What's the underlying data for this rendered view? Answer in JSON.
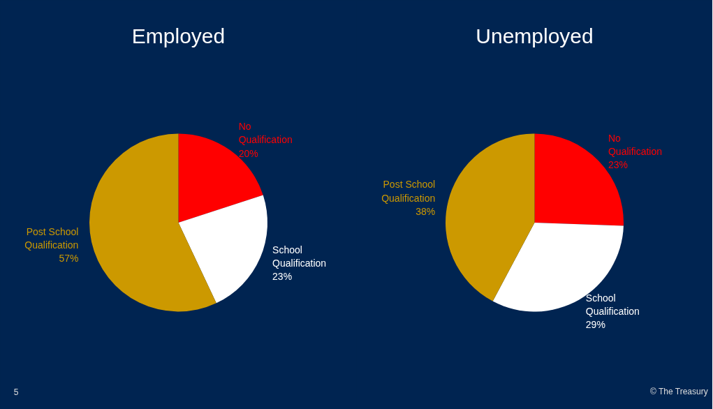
{
  "chart_data": [
    {
      "type": "pie",
      "title": "Employed",
      "categories": [
        "No Qualification",
        "School Qualification",
        "Post School Qualification"
      ],
      "values": [
        20,
        23,
        57
      ],
      "colors": [
        "#ff0000",
        "#ffffff",
        "#cc9900"
      ],
      "value_labels": [
        "20%",
        "23%",
        "57%"
      ],
      "annotations": [
        "5"
      ]
    },
    {
      "type": "pie",
      "title": "Unemployed",
      "categories": [
        "No Qualification",
        "School Qualification",
        "Post School Qualification"
      ],
      "values": [
        23,
        29,
        38
      ],
      "colors": [
        "#ff0000",
        "#ffffff",
        "#cc9900"
      ],
      "value_labels": [
        "23%",
        "29%",
        "38%"
      ],
      "annotations": [
        "© The Treasury"
      ]
    }
  ]
}
